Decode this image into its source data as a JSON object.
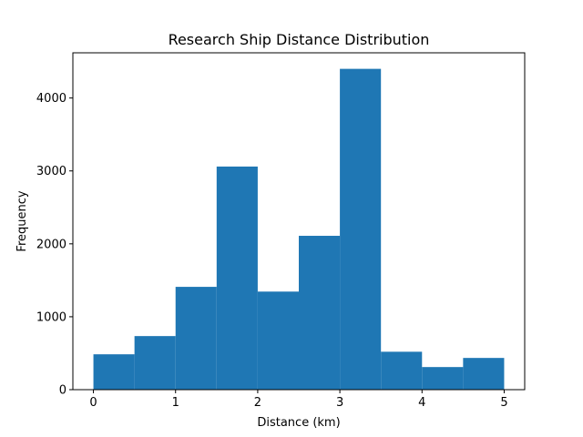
{
  "chart_data": {
    "type": "bar",
    "title": "Research Ship Distance Distribution",
    "xlabel": "Distance (km)",
    "ylabel": "Frequency",
    "bins": [
      {
        "x0": 0.0,
        "x1": 0.5,
        "value": 485
      },
      {
        "x0": 0.5,
        "x1": 1.0,
        "value": 735
      },
      {
        "x0": 1.0,
        "x1": 1.5,
        "value": 1410
      },
      {
        "x0": 1.5,
        "x1": 2.0,
        "value": 3060
      },
      {
        "x0": 2.0,
        "x1": 2.5,
        "value": 1345
      },
      {
        "x0": 2.5,
        "x1": 3.0,
        "value": 2110
      },
      {
        "x0": 3.0,
        "x1": 3.5,
        "value": 4400
      },
      {
        "x0": 3.5,
        "x1": 4.0,
        "value": 520
      },
      {
        "x0": 4.0,
        "x1": 4.5,
        "value": 310
      },
      {
        "x0": 4.5,
        "x1": 5.0,
        "value": 435
      }
    ],
    "xlim": [
      -0.25,
      5.25
    ],
    "ylim": [
      0,
      4620
    ],
    "x_ticks": [
      0,
      1,
      2,
      3,
      4,
      5
    ],
    "x_tick_labels": [
      "0",
      "1",
      "2",
      "3",
      "4",
      "5"
    ],
    "y_ticks": [
      0,
      1000,
      2000,
      3000,
      4000
    ],
    "y_tick_labels": [
      "0",
      "1000",
      "2000",
      "3000",
      "4000"
    ],
    "bar_color": "#1f77b4",
    "grid": false,
    "legend": "none"
  }
}
